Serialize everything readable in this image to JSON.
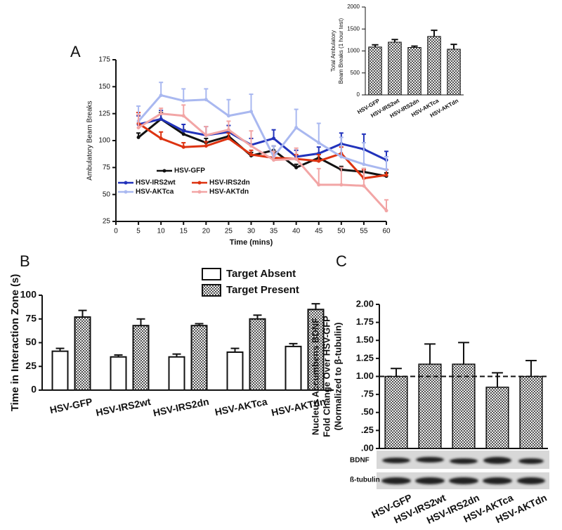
{
  "chart_data": [
    {
      "type": "line",
      "panel_label": "A",
      "xlabel": "Time (mins)",
      "ylabel": "Ambulatory Beam Breaks",
      "x": [
        5,
        10,
        15,
        20,
        25,
        30,
        35,
        40,
        45,
        50,
        55,
        60
      ],
      "xlim": [
        0,
        60
      ],
      "xticks": [
        0,
        5,
        10,
        15,
        20,
        25,
        30,
        35,
        40,
        45,
        50,
        55,
        60
      ],
      "ylim": [
        25,
        175
      ],
      "yticks": [
        25,
        50,
        75,
        100,
        125,
        150,
        175
      ],
      "series": [
        {
          "name": "HSV-GFP",
          "color": "#111111",
          "values": [
            103,
            120,
            106,
            98,
            104,
            86,
            91,
            75,
            84,
            73,
            71,
            67
          ],
          "errors": [
            4,
            6,
            4,
            4,
            4,
            3,
            4,
            3,
            3,
            3,
            3,
            3
          ]
        },
        {
          "name": "HSV-IRS2wt",
          "color": "#2233bb",
          "values": [
            115,
            120,
            109,
            105,
            108,
            96,
            102,
            85,
            88,
            97,
            92,
            82
          ],
          "errors": [
            8,
            8,
            6,
            8,
            6,
            6,
            8,
            6,
            6,
            10,
            14,
            8
          ]
        },
        {
          "name": "HSV-IRS2dn",
          "color": "#dd3311",
          "values": [
            116,
            102,
            94,
            95,
            102,
            87,
            84,
            83,
            81,
            88,
            65,
            68
          ],
          "errors": [
            10,
            6,
            4,
            4,
            5,
            4,
            4,
            4,
            6,
            6,
            8,
            5
          ]
        },
        {
          "name": "HSV-AKTca",
          "color": "#a9b8f0",
          "values": [
            118,
            142,
            137,
            138,
            123,
            127,
            85,
            112,
            98,
            85,
            78,
            73
          ],
          "errors": [
            14,
            12,
            11,
            10,
            15,
            16,
            10,
            17,
            18,
            18,
            20,
            12
          ]
        },
        {
          "name": "HSV-AKTdn",
          "color": "#f2a5a5",
          "values": [
            112,
            125,
            123,
            105,
            110,
            95,
            82,
            83,
            59,
            59,
            58,
            35
          ],
          "errors": [
            12,
            5,
            10,
            8,
            8,
            14,
            8,
            10,
            15,
            16,
            16,
            10
          ]
        }
      ]
    },
    {
      "type": "bar",
      "ylabel": [
        "Total Ambulatory",
        "Beam Breaks (1 hour test)"
      ],
      "categories": [
        "HSV-GFP",
        "HSV-IRS2wt",
        "HSV-IRS2dn",
        "HSV-AKTca",
        "HSV-AKTdn"
      ],
      "values": [
        1090,
        1200,
        1080,
        1330,
        1040
      ],
      "errors": [
        50,
        60,
        30,
        140,
        110
      ],
      "ylim": [
        0,
        2000
      ],
      "yticks": [
        0,
        500,
        1000,
        1500,
        2000
      ],
      "hatch": true
    },
    {
      "type": "grouped_bar",
      "panel_label": "B",
      "ylabel": "Time in Interaction Zone (s)",
      "categories": [
        "HSV-GFP",
        "HSV-IRS2wt",
        "HSV-IRS2dn",
        "HSV-AKTca",
        "HSV-AKTdn"
      ],
      "ylim": [
        0,
        100
      ],
      "yticks": [
        0,
        25,
        50,
        75,
        100
      ],
      "series": [
        {
          "name": "Target Absent",
          "color": "#ffffff",
          "hatch": false,
          "values": [
            41,
            35,
            35,
            40,
            46
          ],
          "errors": [
            3,
            2,
            3,
            4,
            3
          ]
        },
        {
          "name": "Target Present",
          "color": "#888888",
          "hatch": true,
          "values": [
            77,
            68,
            68,
            75,
            85
          ],
          "errors": [
            7,
            7,
            2,
            4,
            6
          ]
        }
      ]
    },
    {
      "type": "bar",
      "panel_label": "C",
      "ylabel": [
        "Nucleus Accumbens BDNF",
        "Fold Change Over HSV-GFP",
        "(Normalized to β-tubulin)"
      ],
      "categories": [
        "HSV-GFP",
        "HSV-IRS2wt",
        "HSV-IRS2dn",
        "HSV-AKTca",
        "HSV-AKTdn"
      ],
      "values": [
        1.0,
        1.17,
        1.17,
        0.85,
        1.0
      ],
      "errors": [
        0.11,
        0.28,
        0.3,
        0.2,
        0.22
      ],
      "ylim": [
        0,
        2
      ],
      "yticks": [
        {
          "value": 0,
          "label": ".00"
        },
        {
          "value": 0.25,
          "label": ".25"
        },
        {
          "value": 0.5,
          "label": ".50"
        },
        {
          "value": 0.75,
          "label": ".75"
        },
        {
          "value": 1,
          "label": "1.00"
        },
        {
          "value": 1.25,
          "label": "1.25"
        },
        {
          "value": 1.5,
          "label": "1.50"
        },
        {
          "value": 1.75,
          "label": "1.75"
        },
        {
          "value": 2,
          "label": "2.00"
        }
      ],
      "reference_line": 1,
      "hatch": true,
      "blot_labels": [
        "BDNF",
        "ß-tubulin"
      ]
    }
  ]
}
